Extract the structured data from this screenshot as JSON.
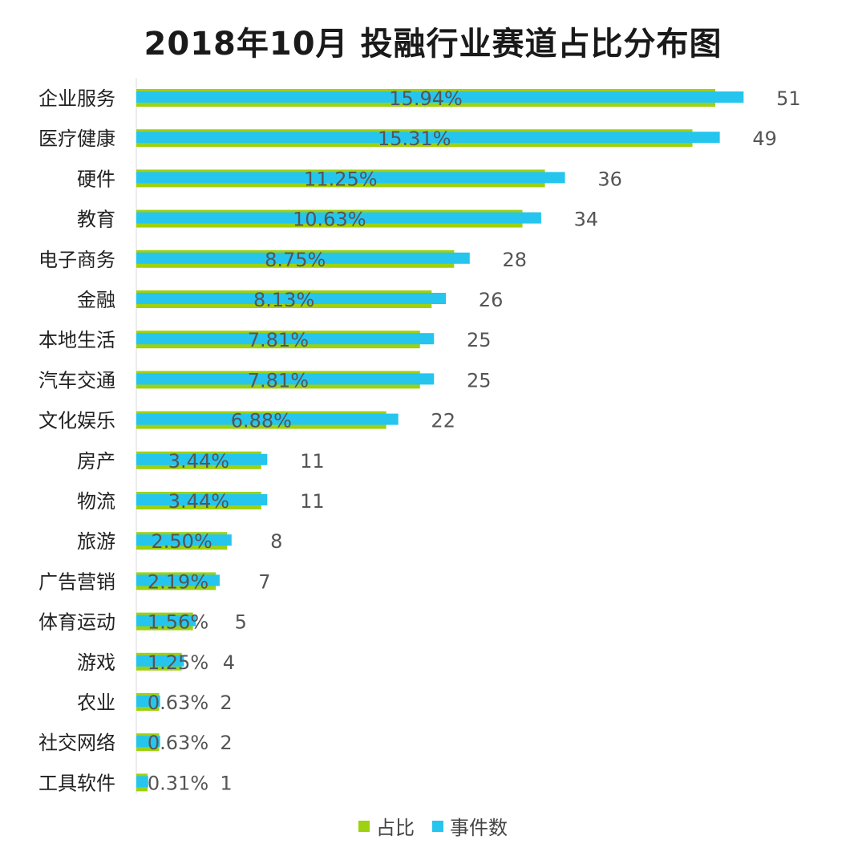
{
  "chart_data": {
    "type": "bar",
    "orientation": "horizontal",
    "title": "2018年10月 投融行业赛道占比分布图",
    "categories": [
      "企业服务",
      "医疗健康",
      "硬件",
      "教育",
      "电子商务",
      "金融",
      "本地生活",
      "汽车交通",
      "文化娱乐",
      "房产",
      "物流",
      "旅游",
      "广告营销",
      "体育运动",
      "游戏",
      "农业",
      "社交网络",
      "工具软件"
    ],
    "series": [
      {
        "name": "占比",
        "color": "#9ed10f",
        "values": [
          15.94,
          15.31,
          11.25,
          10.63,
          8.75,
          8.13,
          7.81,
          7.81,
          6.88,
          3.44,
          3.44,
          2.5,
          2.19,
          1.56,
          1.25,
          0.63,
          0.63,
          0.31
        ],
        "labels": [
          "15.94%",
          "15.31%",
          "11.25%",
          "10.63%",
          "8.75%",
          "8.13%",
          "7.81%",
          "7.81%",
          "6.88%",
          "3.44%",
          "3.44%",
          "2.50%",
          "2.19%",
          "1.56%",
          "1.25%",
          "0.63%",
          "0.63%",
          "0.31%"
        ]
      },
      {
        "name": "事件数",
        "color": "#25c5ee",
        "values": [
          51,
          49,
          36,
          34,
          28,
          26,
          25,
          25,
          22,
          11,
          11,
          8,
          7,
          5,
          4,
          2,
          2,
          1
        ],
        "labels": [
          "51",
          "49",
          "36",
          "34",
          "28",
          "26",
          "25",
          "25",
          "22",
          "11",
          "11",
          "8",
          "7",
          "5",
          "4",
          "2",
          "2",
          "1"
        ]
      }
    ],
    "legend_position": "bottom",
    "grid": false
  },
  "legend": {
    "item1": "占比",
    "item2": "事件数"
  }
}
